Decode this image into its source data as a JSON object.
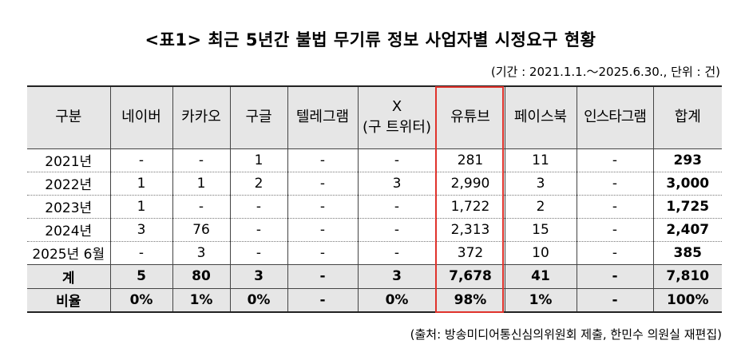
{
  "title": "<표1> 최근 5년간 불법 무기류 정보 사업자별 시정요구 현황",
  "period_note": "(기간 : 2021.1.1.～2025.6.30., 단위 : 건)",
  "source_note": "(출처: 방송미디어통신심의위원회 제출, 한민수 의원실 재편집)",
  "table": {
    "headers": [
      "구분",
      "네이버",
      "카카오",
      "구글",
      "텔레그램",
      "X\n(구 트위터)",
      "유튜브",
      "페이스북",
      "인스타그램",
      "합계"
    ],
    "rows": [
      {
        "label": "2021년",
        "cells": [
          "-",
          "-",
          "1",
          "-",
          "-",
          "281",
          "11",
          "-",
          "293"
        ]
      },
      {
        "label": "2022년",
        "cells": [
          "1",
          "1",
          "2",
          "-",
          "3",
          "2,990",
          "3",
          "-",
          "3,000"
        ]
      },
      {
        "label": "2023년",
        "cells": [
          "1",
          "-",
          "-",
          "-",
          "-",
          "1,722",
          "2",
          "-",
          "1,725"
        ]
      },
      {
        "label": "2024년",
        "cells": [
          "3",
          "76",
          "-",
          "-",
          "-",
          "2,313",
          "15",
          "-",
          "2,407"
        ]
      },
      {
        "label": "2025년 6월",
        "cells": [
          "-",
          "3",
          "-",
          "-",
          "-",
          "372",
          "10",
          "-",
          "385"
        ]
      }
    ],
    "totals": [
      {
        "label": "계",
        "cells": [
          "5",
          "80",
          "3",
          "-",
          "3",
          "7,678",
          "41",
          "-",
          "7,810"
        ]
      },
      {
        "label": "비율",
        "cells": [
          "0%",
          "1%",
          "0%",
          "-",
          "0%",
          "98%",
          "1%",
          "-",
          "100%"
        ]
      }
    ]
  },
  "colors": {
    "header_bg": "#e6e6e6",
    "highlight_border": "#e0332c"
  }
}
